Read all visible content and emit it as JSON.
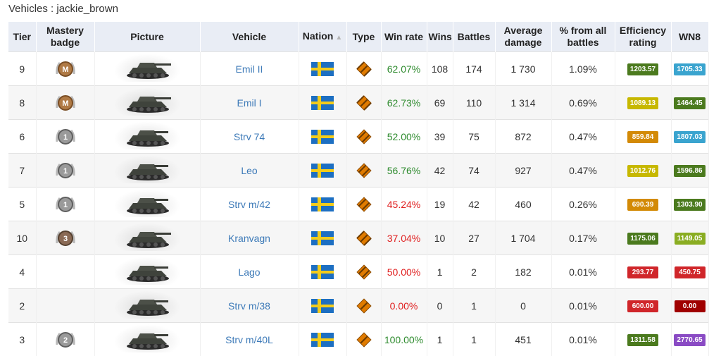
{
  "page": {
    "title": "Vehicles : jackie_brown"
  },
  "columns": [
    {
      "key": "tier",
      "label": "Tier"
    },
    {
      "key": "mastery",
      "label": "Mastery badge"
    },
    {
      "key": "picture",
      "label": "Picture"
    },
    {
      "key": "vehicle",
      "label": "Vehicle"
    },
    {
      "key": "nation",
      "label": "Nation"
    },
    {
      "key": "type",
      "label": "Type"
    },
    {
      "key": "winrate",
      "label": "Win rate"
    },
    {
      "key": "wins",
      "label": "Wins"
    },
    {
      "key": "battles",
      "label": "Battles"
    },
    {
      "key": "avgdmg",
      "label": "Average damage"
    },
    {
      "key": "pct",
      "label": "% from all battles"
    },
    {
      "key": "eff",
      "label": "Efficiency rating"
    },
    {
      "key": "wn8",
      "label": "WN8"
    }
  ],
  "sort_indicator": "▲",
  "rows": [
    {
      "tier": "9",
      "mastery": "M",
      "mastery_kind": "bronze",
      "vehicle": "Emil II",
      "nation": "sweden",
      "type": "heavy",
      "type_color": "#e07b00",
      "winrate": "62.07%",
      "win_good": true,
      "wins": "108",
      "battles": "174",
      "avgdmg": "1 730",
      "pct": "1.09%",
      "eff": "1203.57",
      "eff_color": "#4b7a1e",
      "wn8": "1705.33",
      "wn8_color": "#3aa4cf"
    },
    {
      "tier": "8",
      "mastery": "M",
      "mastery_kind": "bronze",
      "vehicle": "Emil I",
      "nation": "sweden",
      "type": "heavy",
      "type_color": "#e07b00",
      "winrate": "62.73%",
      "win_good": true,
      "wins": "69",
      "battles": "110",
      "avgdmg": "1 314",
      "pct": "0.69%",
      "eff": "1089.13",
      "eff_color": "#c7b800",
      "wn8": "1464.45",
      "wn8_color": "#4b7a1e"
    },
    {
      "tier": "6",
      "mastery": "1",
      "mastery_kind": "silver",
      "vehicle": "Strv 74",
      "nation": "sweden",
      "type": "medium",
      "type_color": "#e07b00",
      "winrate": "52.00%",
      "win_good": true,
      "wins": "39",
      "battles": "75",
      "avgdmg": "872",
      "pct": "0.47%",
      "eff": "859.84",
      "eff_color": "#d38a06",
      "wn8": "1807.03",
      "wn8_color": "#3aa4cf"
    },
    {
      "tier": "7",
      "mastery": "1",
      "mastery_kind": "silver",
      "vehicle": "Leo",
      "nation": "sweden",
      "type": "medium",
      "type_color": "#e07b00",
      "winrate": "56.76%",
      "win_good": true,
      "wins": "42",
      "battles": "74",
      "avgdmg": "927",
      "pct": "0.47%",
      "eff": "1012.76",
      "eff_color": "#c7b800",
      "wn8": "1596.86",
      "wn8_color": "#4b7a1e"
    },
    {
      "tier": "5",
      "mastery": "1",
      "mastery_kind": "silver",
      "vehicle": "Strv m/42",
      "nation": "sweden",
      "type": "medium",
      "type_color": "#e07b00",
      "winrate": "45.24%",
      "win_good": false,
      "wins": "19",
      "battles": "42",
      "avgdmg": "460",
      "pct": "0.26%",
      "eff": "690.39",
      "eff_color": "#d38a06",
      "wn8": "1303.90",
      "wn8_color": "#4b7a1e"
    },
    {
      "tier": "10",
      "mastery": "3",
      "mastery_kind": "bronze3",
      "vehicle": "Kranvagn",
      "nation": "sweden",
      "type": "heavy",
      "type_color": "#e07b00",
      "winrate": "37.04%",
      "win_good": false,
      "wins": "10",
      "battles": "27",
      "avgdmg": "1 704",
      "pct": "0.17%",
      "eff": "1175.06",
      "eff_color": "#4b7a1e",
      "wn8": "1149.05",
      "wn8_color": "#8aad22"
    },
    {
      "tier": "4",
      "mastery": "",
      "mastery_kind": "none",
      "vehicle": "Lago",
      "nation": "sweden",
      "type": "medium",
      "type_color": "#e07b00",
      "winrate": "50.00%",
      "win_good": false,
      "wins": "1",
      "battles": "2",
      "avgdmg": "182",
      "pct": "0.01%",
      "eff": "293.77",
      "eff_color": "#d0262a",
      "wn8": "450.75",
      "wn8_color": "#d0262a"
    },
    {
      "tier": "2",
      "mastery": "",
      "mastery_kind": "none",
      "vehicle": "Strv m/38",
      "nation": "sweden",
      "type": "light",
      "type_color": "#e07b00",
      "winrate": "0.00%",
      "win_good": false,
      "wins": "0",
      "battles": "1",
      "avgdmg": "0",
      "pct": "0.01%",
      "eff": "600.00",
      "eff_color": "#d0262a",
      "wn8": "0.00",
      "wn8_color": "#a00000"
    },
    {
      "tier": "3",
      "mastery": "2",
      "mastery_kind": "silver2",
      "vehicle": "Strv m/40L",
      "nation": "sweden",
      "type": "light",
      "type_color": "#e07b00",
      "winrate": "100.00%",
      "win_good": true,
      "wins": "1",
      "battles": "1",
      "avgdmg": "451",
      "pct": "0.01%",
      "eff": "1311.58",
      "eff_color": "#4b7a1e",
      "wn8": "2770.65",
      "wn8_color": "#8a4bc4"
    }
  ],
  "icons": {
    "mastery": "mastery-badge-icon",
    "flag": "sweden-flag-icon",
    "type": "vehicle-type-icon",
    "tank": "tank-picture"
  }
}
